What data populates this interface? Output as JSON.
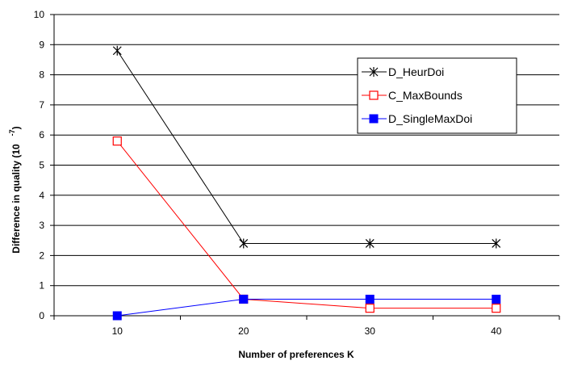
{
  "chart_data": {
    "type": "line",
    "x": [
      10,
      20,
      30,
      40
    ],
    "x_tick_labels": [
      "10",
      "20",
      "30",
      "40"
    ],
    "xlabel": "Number of preferences K",
    "ylabel": "Difference in quality (10",
    "ylabel_superscript": "-7",
    "ylabel_close": ")",
    "ylim": [
      0,
      10
    ],
    "y_ticks": [
      0,
      1,
      2,
      3,
      4,
      5,
      6,
      7,
      8,
      9,
      10
    ],
    "grid": "horizontal",
    "legend_position": "top-right",
    "series": [
      {
        "name": "D_HeurDoi",
        "values": [
          8.8,
          2.4,
          2.4,
          2.4
        ],
        "color": "#000000",
        "marker": "asterisk"
      },
      {
        "name": "C_MaxBounds",
        "values": [
          5.8,
          0.55,
          0.25,
          0.25
        ],
        "color": "#ff0000",
        "marker": "open-square"
      },
      {
        "name": "D_SingleMaxDoi",
        "values": [
          0.0,
          0.55,
          0.55,
          0.55
        ],
        "color": "#0000ff",
        "marker": "filled-square"
      }
    ]
  }
}
